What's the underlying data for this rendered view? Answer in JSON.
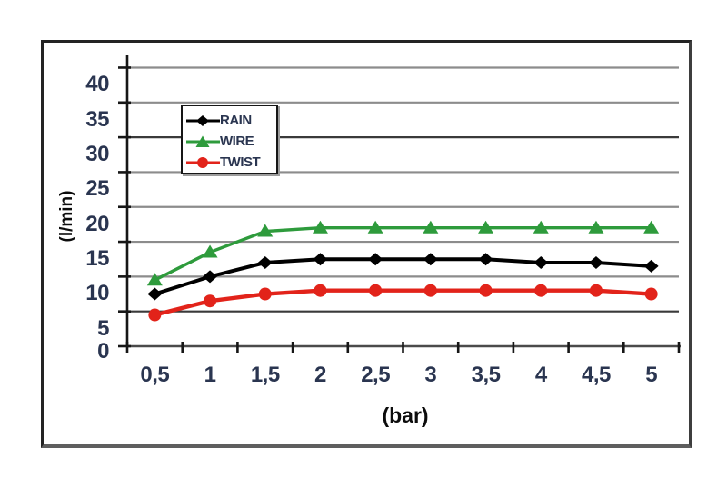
{
  "chart_data": {
    "type": "line",
    "title": "",
    "xlabel": "(bar)",
    "ylabel": "(l/min)",
    "x_tick_labels": [
      "0,5",
      "1",
      "1,5",
      "2",
      "2,5",
      "3",
      "3,5",
      "4",
      "4,5",
      "5"
    ],
    "x_values": [
      0.5,
      1,
      1.5,
      2,
      2.5,
      3,
      3.5,
      4,
      4.5,
      5
    ],
    "y_tick_labels": [
      "0",
      "5",
      "10",
      "15",
      "20",
      "25",
      "30",
      "35",
      "40"
    ],
    "y_tick_values": [
      0,
      5,
      10,
      15,
      20,
      25,
      30,
      35,
      40
    ],
    "ylim": [
      0,
      42
    ],
    "y_major_unit": 5,
    "grid": "horizontal",
    "legend_position": "upper-left-inside",
    "series": [
      {
        "name": "RAIN",
        "color": "#000000",
        "marker": "diamond",
        "values": [
          7.5,
          10,
          12,
          12.5,
          12.5,
          12.5,
          12.5,
          12,
          12,
          11.5
        ]
      },
      {
        "name": "WIRE",
        "color": "#2E9B3C",
        "marker": "triangle",
        "values": [
          9.5,
          13.5,
          16.5,
          17,
          17,
          17,
          17,
          17,
          17,
          17
        ]
      },
      {
        "name": "TWIST",
        "color": "#E2231A",
        "marker": "circle",
        "values": [
          4.5,
          6.5,
          7.5,
          8,
          8,
          8,
          8,
          8,
          8,
          7.5
        ]
      }
    ]
  },
  "colors": {
    "background": "#ffffff",
    "gridline": "#8c8c8c",
    "gridline_dark": "#3a3a3a",
    "axis": "#161616",
    "x_axis_line": "#4a4a4a",
    "tick_label": "#2a3550",
    "frame_border": "#232323",
    "frame_shadow": "#5e5e5e",
    "legend_border": "#161616",
    "series_rain": "#000000",
    "series_wire": "#2E9B3C",
    "series_twist": "#E2231A"
  }
}
